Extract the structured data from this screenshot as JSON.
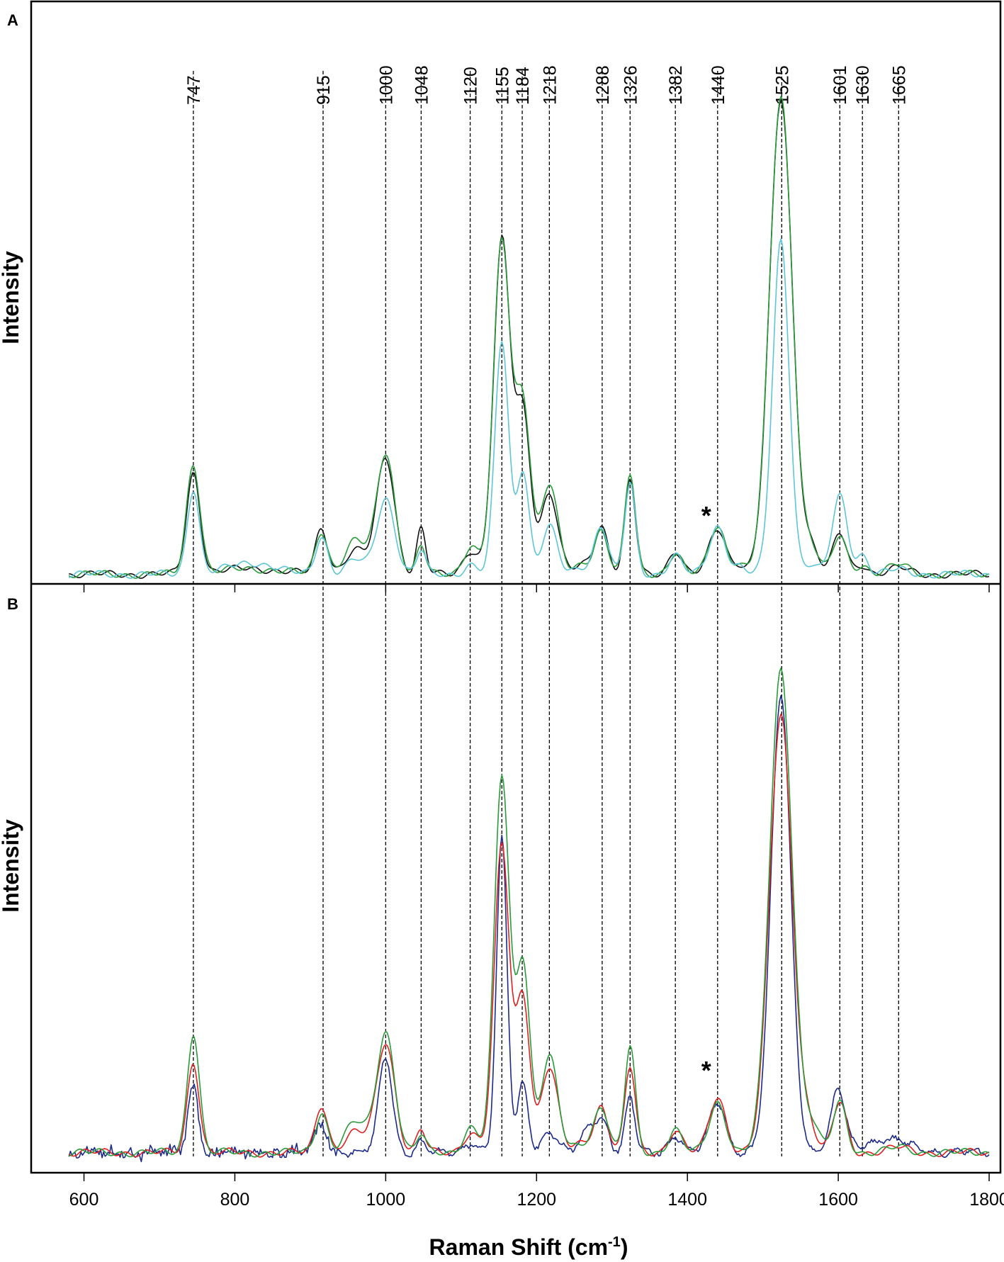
{
  "chart_data": {
    "type": "line",
    "xlabel": "Raman Shift (cm",
    "xlabel_sup": "-1",
    "xlabel_close": ")",
    "xlim": [
      530,
      1815
    ],
    "x_ticks": [
      600,
      800,
      1000,
      1200,
      1400,
      1600,
      1800
    ],
    "x_tick_labels": [
      "600",
      "800",
      "1000",
      "1200",
      "1400",
      "1600",
      "1800"
    ],
    "peak_markers": [
      747,
      915,
      1000,
      1048,
      1120,
      1155,
      1184,
      1218,
      1288,
      1326,
      1382,
      1440,
      1525,
      1601,
      1630,
      1665
    ],
    "peak_labels": [
      "747",
      "915",
      "1000",
      "1048",
      "1120",
      "1155",
      "1184",
      "1218",
      "1288",
      "1326",
      "1382",
      "1440",
      "1525",
      "1601",
      "1630",
      "1665"
    ],
    "peak_positions": [
      745,
      917,
      1000,
      1047,
      1112,
      1154,
      1181,
      1217,
      1287,
      1324,
      1384,
      1440,
      1525,
      1602,
      1632,
      1680
    ],
    "panels": [
      {
        "letter": "A",
        "ylabel": "Intensity",
        "asterisk": "*",
        "asterisk_x": 1425,
        "baseline": 0.02,
        "ylim": [
          0,
          1.22
        ],
        "series": [
          {
            "color": "#111111",
            "peaks": [
              [
                745,
                0.21,
                9
              ],
              [
                822,
                0.012,
                40
              ],
              [
                915,
                0.095,
                8
              ],
              [
                960,
                0.05,
                14
              ],
              [
                1000,
                0.245,
                12
              ],
              [
                1047,
                0.095,
                6
              ],
              [
                1113,
                0.05,
                10
              ],
              [
                1154,
                0.695,
                11
              ],
              [
                1182,
                0.335,
                10
              ],
              [
                1217,
                0.17,
                11
              ],
              [
                1263,
                0.02,
                12
              ],
              [
                1286,
                0.1,
                9
              ],
              [
                1324,
                0.195,
                7
              ],
              [
                1384,
                0.05,
                9
              ],
              [
                1440,
                0.095,
                11
              ],
              [
                1468,
                0.02,
                8
              ],
              [
                1524,
                0.995,
                15
              ],
              [
                1565,
                0.05,
                10
              ],
              [
                1602,
                0.085,
                9
              ],
              [
                1632,
                0.02,
                8
              ],
              [
                1680,
                0.013,
                14
              ]
            ]
          },
          {
            "color": "#2a9a3a",
            "peaks": [
              [
                745,
                0.23,
                9
              ],
              [
                822,
                0.012,
                40
              ],
              [
                915,
                0.09,
                8
              ],
              [
                960,
                0.07,
                14
              ],
              [
                1000,
                0.255,
                12
              ],
              [
                1047,
                0.06,
                6
              ],
              [
                1113,
                0.06,
                10
              ],
              [
                1154,
                0.695,
                11
              ],
              [
                1182,
                0.36,
                10
              ],
              [
                1217,
                0.19,
                11
              ],
              [
                1263,
                0.02,
                12
              ],
              [
                1286,
                0.09,
                9
              ],
              [
                1324,
                0.21,
                7
              ],
              [
                1384,
                0.045,
                9
              ],
              [
                1440,
                0.1,
                11
              ],
              [
                1468,
                0.02,
                8
              ],
              [
                1524,
                1.0,
                15
              ],
              [
                1565,
                0.05,
                10
              ],
              [
                1602,
                0.08,
                9
              ],
              [
                1632,
                0.02,
                8
              ],
              [
                1680,
                0.02,
                14
              ]
            ]
          },
          {
            "color": "#5ec6d6",
            "peaks": [
              [
                745,
                0.18,
                8
              ],
              [
                822,
                0.025,
                30
              ],
              [
                915,
                0.08,
                8
              ],
              [
                960,
                0.03,
                12
              ],
              [
                1000,
                0.16,
                12
              ],
              [
                1047,
                0.05,
                6
              ],
              [
                1113,
                0.02,
                9
              ],
              [
                1154,
                0.49,
                9
              ],
              [
                1182,
                0.22,
                8
              ],
              [
                1217,
                0.1,
                10
              ],
              [
                1263,
                0.015,
                12
              ],
              [
                1286,
                0.1,
                9
              ],
              [
                1324,
                0.19,
                7
              ],
              [
                1384,
                0.04,
                9
              ],
              [
                1440,
                0.1,
                11
              ],
              [
                1470,
                0.015,
                8
              ],
              [
                1524,
                0.7,
                11
              ],
              [
                1565,
                0.02,
                8
              ],
              [
                1602,
                0.165,
                10
              ],
              [
                1632,
                0.04,
                8
              ],
              [
                1680,
                0.01,
                14
              ]
            ]
          }
        ]
      },
      {
        "letter": "B",
        "ylabel": "Intensity",
        "asterisk": "*",
        "asterisk_x": 1425,
        "baseline": 0.04,
        "ylim": [
          0,
          1.17
        ],
        "series": [
          {
            "color": "#1c2a8a",
            "noise": 0.022,
            "noise_until": 935,
            "peaks": [
              [
                745,
                0.13,
                7
              ],
              [
                915,
                0.06,
                8
              ],
              [
                1000,
                0.19,
                9
              ],
              [
                1047,
                0.02,
                6
              ],
              [
                1113,
                0.02,
                9
              ],
              [
                1154,
                0.62,
                7
              ],
              [
                1182,
                0.14,
                7
              ],
              [
                1217,
                0.04,
                10
              ],
              [
                1270,
                0.05,
                10
              ],
              [
                1288,
                0.06,
                8
              ],
              [
                1324,
                0.11,
                6
              ],
              [
                1384,
                0.035,
                9
              ],
              [
                1440,
                0.1,
                11
              ],
              [
                1524,
                0.91,
                13
              ],
              [
                1600,
                0.12,
                9
              ],
              [
                1660,
                0.025,
                35
              ]
            ]
          },
          {
            "color": "#e02020",
            "peaks": [
              [
                745,
                0.18,
                8
              ],
              [
                915,
                0.095,
                8
              ],
              [
                960,
                0.04,
                14
              ],
              [
                1000,
                0.22,
                12
              ],
              [
                1047,
                0.045,
                6
              ],
              [
                1113,
                0.04,
                10
              ],
              [
                1154,
                0.61,
                10
              ],
              [
                1182,
                0.31,
                9
              ],
              [
                1217,
                0.17,
                11
              ],
              [
                1263,
                0.02,
                12
              ],
              [
                1286,
                0.09,
                9
              ],
              [
                1324,
                0.17,
                7
              ],
              [
                1384,
                0.045,
                9
              ],
              [
                1440,
                0.11,
                11
              ],
              [
                1524,
                0.87,
                15
              ],
              [
                1560,
                0.05,
                10
              ],
              [
                1602,
                0.1,
                9
              ],
              [
                1680,
                0.01,
                14
              ]
            ]
          },
          {
            "color": "#2a9a3a",
            "peaks": [
              [
                745,
                0.24,
                8
              ],
              [
                915,
                0.08,
                8
              ],
              [
                960,
                0.06,
                14
              ],
              [
                1000,
                0.24,
                12
              ],
              [
                1047,
                0.035,
                6
              ],
              [
                1113,
                0.05,
                10
              ],
              [
                1154,
                0.75,
                10
              ],
              [
                1182,
                0.38,
                9
              ],
              [
                1217,
                0.19,
                11
              ],
              [
                1263,
                0.02,
                12
              ],
              [
                1286,
                0.09,
                9
              ],
              [
                1324,
                0.21,
                7
              ],
              [
                1384,
                0.045,
                9
              ],
              [
                1440,
                0.1,
                11
              ],
              [
                1524,
                0.96,
                15
              ],
              [
                1565,
                0.05,
                10
              ],
              [
                1602,
                0.1,
                9
              ],
              [
                1680,
                0.01,
                14
              ]
            ]
          }
        ]
      }
    ]
  }
}
